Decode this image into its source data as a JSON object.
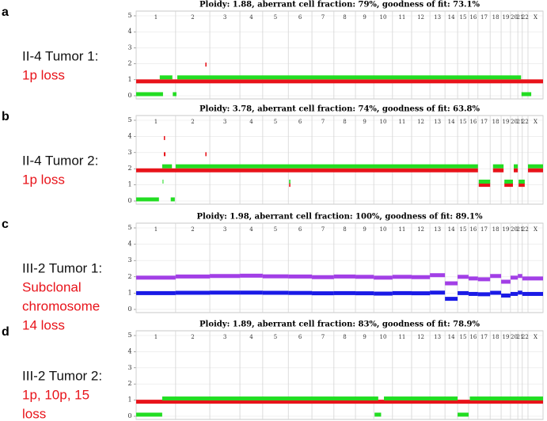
{
  "chart_data": [
    {
      "type": "segments",
      "panel": "a",
      "sample": "II-4 Tumor 1:",
      "finding": [
        "1p loss"
      ],
      "title": "Ploidy: 1.88, aberrant cell fraction: 79%, goodness of fit: 73.1%",
      "categories": [
        "1",
        "2",
        "3",
        "4",
        "5",
        "6",
        "7",
        "8",
        "9",
        "10",
        "11",
        "12",
        "13",
        "14",
        "15",
        "16",
        "17",
        "18",
        "19",
        "20",
        "21",
        "22",
        "X"
      ],
      "bounds": [
        0,
        9.7,
        18.1,
        25.5,
        31.1,
        37.4,
        43.2,
        48.6,
        53.9,
        58.4,
        63.0,
        67.7,
        72.2,
        75.9,
        79.0,
        81.7,
        84.0,
        87.0,
        89.7,
        92.0,
        93.8,
        94.9,
        96.3,
        100
      ],
      "xlim": [
        0,
        100
      ],
      "ylim": [
        0,
        5
      ],
      "yticks": [
        0,
        1,
        2,
        3,
        4,
        5
      ],
      "grid": true,
      "series": [
        {
          "color": "#e8131a",
          "segments": [
            [
              0,
              100,
              0.9
            ],
            [
              17.0,
              17.3,
              1.95
            ]
          ]
        },
        {
          "color": "#22dd22",
          "segments": [
            [
              5.8,
              8.9,
              1.15
            ],
            [
              10.1,
              94.6,
              1.15
            ],
            [
              0,
              6.6,
              0.1
            ],
            [
              9.0,
              9.9,
              0.1
            ],
            [
              94.7,
              97.1,
              0.1
            ]
          ]
        }
      ]
    },
    {
      "type": "segments",
      "panel": "b",
      "sample": "II-4 Tumor 2:",
      "finding": [
        "1p loss"
      ],
      "title": "Ploidy: 3.78, aberrant cell fraction: 74%, goodness of fit: 63.8%",
      "categories": [
        "1",
        "2",
        "3",
        "4",
        "5",
        "6",
        "7",
        "8",
        "9",
        "10",
        "11",
        "12",
        "13",
        "14",
        "15",
        "16",
        "17",
        "18",
        "19",
        "20",
        "21",
        "22",
        "X"
      ],
      "bounds": [
        0,
        9.7,
        18.1,
        25.5,
        31.1,
        37.4,
        43.2,
        48.6,
        53.9,
        58.4,
        63.0,
        67.7,
        72.2,
        75.9,
        79.0,
        81.7,
        84.0,
        87.0,
        89.7,
        92.0,
        93.8,
        94.9,
        96.3,
        100
      ],
      "xlim": [
        0,
        100
      ],
      "ylim": [
        0,
        5
      ],
      "yticks": [
        0,
        1,
        2,
        3,
        4,
        5
      ],
      "grid": true,
      "series": [
        {
          "color": "#e8131a",
          "segments": [
            [
              0,
              84.0,
              1.9
            ],
            [
              84.2,
              87.0,
              1.0
            ],
            [
              87.7,
              90.3,
              1.9
            ],
            [
              90.5,
              92.6,
              1.0
            ],
            [
              92.8,
              93.8,
              1.9
            ],
            [
              94.0,
              95.5,
              1.0
            ],
            [
              96.3,
              100,
              1.9
            ],
            [
              6.8,
              7.1,
              3.9
            ],
            [
              6.8,
              7.2,
              2.9
            ],
            [
              17.0,
              17.3,
              2.9
            ],
            [
              37.6,
              37.9,
              1.0
            ]
          ]
        },
        {
          "color": "#22dd22",
          "segments": [
            [
              6.4,
              8.8,
              2.15
            ],
            [
              9.7,
              84.0,
              2.15
            ],
            [
              84.2,
              87.0,
              1.2
            ],
            [
              87.7,
              90.3,
              2.15
            ],
            [
              90.5,
              92.6,
              1.2
            ],
            [
              92.8,
              93.8,
              2.15
            ],
            [
              94.0,
              95.5,
              1.2
            ],
            [
              96.3,
              100,
              2.15
            ],
            [
              0,
              5.6,
              0.1
            ],
            [
              8.5,
              9.5,
              0.1
            ],
            [
              37.6,
              37.9,
              1.2
            ],
            [
              6.5,
              6.7,
              1.2
            ]
          ]
        }
      ]
    },
    {
      "type": "segments",
      "panel": "c",
      "sample": "III-2 Tumor 1:",
      "finding": [
        "Subclonal",
        "chromosome",
        "14 loss"
      ],
      "title": "Ploidy: 1.98, aberrant cell fraction: 100%, goodness of fit: 89.1%",
      "categories": [
        "1",
        "2",
        "3",
        "4",
        "5",
        "6",
        "7",
        "8",
        "9",
        "10",
        "11",
        "12",
        "13",
        "14",
        "15",
        "16",
        "17",
        "18",
        "19",
        "20",
        "21",
        "22",
        "X"
      ],
      "bounds": [
        0,
        9.7,
        18.1,
        25.5,
        31.1,
        37.4,
        43.2,
        48.6,
        53.9,
        58.4,
        63.0,
        67.7,
        72.2,
        75.9,
        79.0,
        81.7,
        84.0,
        87.0,
        89.7,
        92.0,
        93.8,
        94.9,
        96.3,
        100
      ],
      "xlim": [
        0,
        100
      ],
      "ylim": [
        0,
        5
      ],
      "yticks": [
        0,
        1,
        2,
        3,
        4,
        5
      ],
      "grid": true,
      "series": [
        {
          "color": "#a23fe6",
          "segments": [
            [
              0,
              9.7,
              1.95
            ],
            [
              9.7,
              18.1,
              2.02
            ],
            [
              18.1,
              25.5,
              2.05
            ],
            [
              25.5,
              31.1,
              2.07
            ],
            [
              31.1,
              37.4,
              2.03
            ],
            [
              37.4,
              43.2,
              2.02
            ],
            [
              43.2,
              48.6,
              1.98
            ],
            [
              48.6,
              53.9,
              2.02
            ],
            [
              53.9,
              58.4,
              2.0
            ],
            [
              58.4,
              63.0,
              1.95
            ],
            [
              63.0,
              67.7,
              2.0
            ],
            [
              67.7,
              72.2,
              1.98
            ],
            [
              72.2,
              75.9,
              2.1
            ],
            [
              75.9,
              79.0,
              1.6
            ],
            [
              79.0,
              81.7,
              2.0
            ],
            [
              81.7,
              84.0,
              1.9
            ],
            [
              84.0,
              87.0,
              1.85
            ],
            [
              87.0,
              89.7,
              2.05
            ],
            [
              89.7,
              92.0,
              1.7
            ],
            [
              92.0,
              93.8,
              1.95
            ],
            [
              93.8,
              94.9,
              2.05
            ],
            [
              94.9,
              96.3,
              1.9
            ],
            [
              96.3,
              100,
              1.9
            ]
          ]
        },
        {
          "color": "#1a1ae6",
          "segments": [
            [
              0,
              9.7,
              1.0
            ],
            [
              9.7,
              18.1,
              1.02
            ],
            [
              18.1,
              25.5,
              1.03
            ],
            [
              25.5,
              31.1,
              1.03
            ],
            [
              31.1,
              37.4,
              1.02
            ],
            [
              37.4,
              43.2,
              1.01
            ],
            [
              43.2,
              48.6,
              0.99
            ],
            [
              48.6,
              53.9,
              1.0
            ],
            [
              53.9,
              58.4,
              0.99
            ],
            [
              58.4,
              63.0,
              0.97
            ],
            [
              63.0,
              67.7,
              1.0
            ],
            [
              67.7,
              72.2,
              0.99
            ],
            [
              72.2,
              75.9,
              1.03
            ],
            [
              75.9,
              79.0,
              0.65
            ],
            [
              79.0,
              81.7,
              1.0
            ],
            [
              81.7,
              84.0,
              0.95
            ],
            [
              84.0,
              87.0,
              0.93
            ],
            [
              87.0,
              89.7,
              1.02
            ],
            [
              89.7,
              92.0,
              0.85
            ],
            [
              92.0,
              93.8,
              0.95
            ],
            [
              93.8,
              94.9,
              1.03
            ],
            [
              94.9,
              96.3,
              0.95
            ],
            [
              96.3,
              100,
              0.95
            ]
          ]
        }
      ]
    },
    {
      "type": "segments",
      "panel": "d",
      "sample": "III-2 Tumor 2:",
      "finding": [
        "1p, 10p, 15",
        "loss"
      ],
      "title": "Ploidy: 1.89, aberrant cell fraction: 83%, goodness of fit: 78.9%",
      "categories": [
        "1",
        "2",
        "3",
        "4",
        "5",
        "6",
        "7",
        "8",
        "9",
        "10",
        "11",
        "12",
        "13",
        "14",
        "15",
        "16",
        "17",
        "18",
        "19",
        "20",
        "21",
        "22",
        "X"
      ],
      "bounds": [
        0,
        9.7,
        18.1,
        25.5,
        31.1,
        37.4,
        43.2,
        48.6,
        53.9,
        58.4,
        63.0,
        67.7,
        72.2,
        75.9,
        79.0,
        81.7,
        84.0,
        87.0,
        89.7,
        92.0,
        93.8,
        94.9,
        96.3,
        100
      ],
      "xlim": [
        0,
        100
      ],
      "ylim": [
        0,
        5
      ],
      "yticks": [
        0,
        1,
        2,
        3,
        4,
        5
      ],
      "grid": true,
      "series": [
        {
          "color": "#e8131a",
          "segments": [
            [
              0,
              100,
              0.9
            ]
          ]
        },
        {
          "color": "#22dd22",
          "segments": [
            [
              6.4,
              59.5,
              1.1
            ],
            [
              60.9,
              79.0,
              1.1
            ],
            [
              82.0,
              100,
              1.1
            ],
            [
              0,
              6.4,
              0.1
            ],
            [
              58.6,
              60.2,
              0.1
            ],
            [
              79.0,
              81.7,
              0.1
            ]
          ]
        }
      ]
    }
  ]
}
